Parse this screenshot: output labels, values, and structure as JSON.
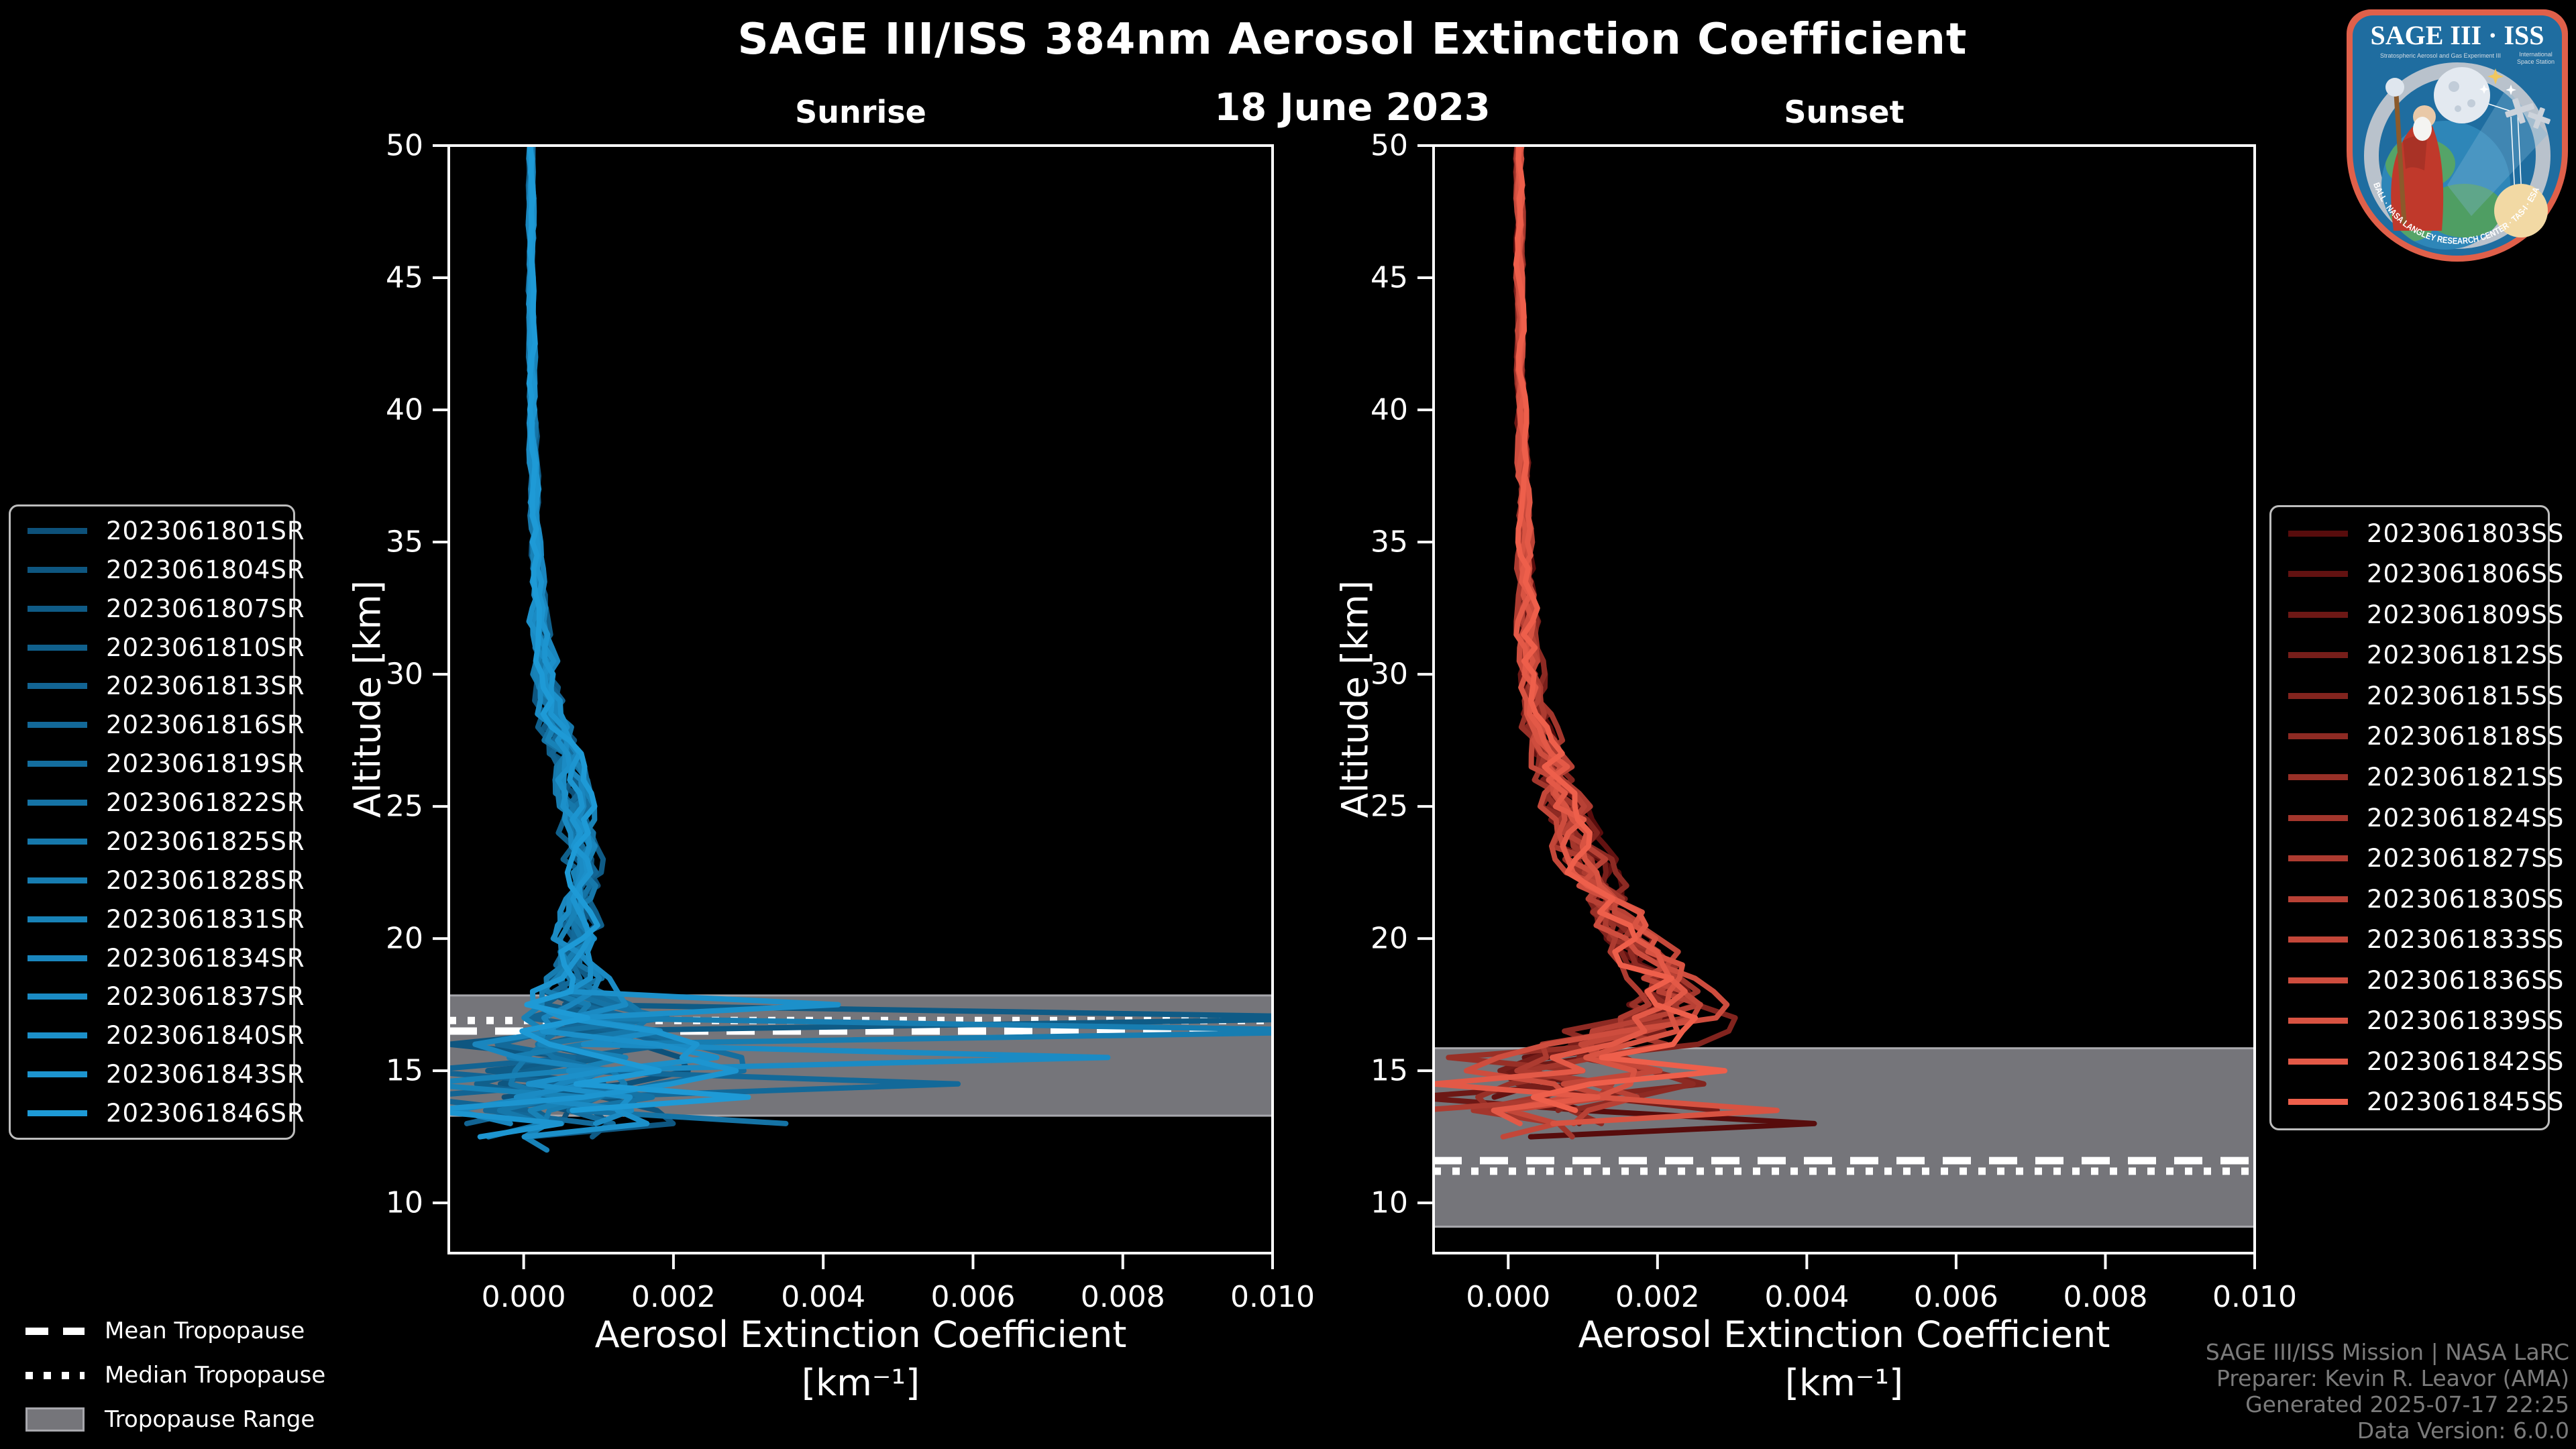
{
  "header": {
    "title": "SAGE III/ISS 384nm Aerosol Extinction Coefficient",
    "date": "18 June 2023"
  },
  "chart_data": [
    {
      "type": "line",
      "title": "Sunrise",
      "xlabel": "Aerosol Extinction Coefficient",
      "xlabel_units": "[km⁻¹]",
      "ylabel": "Altitude [km]",
      "xlim": [
        -0.001,
        0.01
      ],
      "ylim": [
        8.1,
        50
      ],
      "x_ticks": [
        "0.000",
        "0.002",
        "0.004",
        "0.006",
        "0.008",
        "0.010"
      ],
      "x_tick_values": [
        0.0,
        0.002,
        0.004,
        0.006,
        0.008,
        0.01
      ],
      "y_ticks": [
        50,
        45,
        40,
        35,
        30,
        25,
        20,
        15,
        10
      ],
      "grid": false,
      "tropopause": {
        "mean_km": 16.5,
        "median_km": 16.9,
        "range_km": [
          13.3,
          17.85
        ]
      },
      "profile": {
        "alt_km": [
          50,
          45,
          40,
          35,
          32,
          30,
          28,
          26,
          24,
          22,
          20,
          19,
          18,
          17,
          16,
          15,
          14,
          13,
          12.5,
          12
        ],
        "mean_ext": [
          0.0001,
          0.0001,
          0.00012,
          0.00015,
          0.0002,
          0.0003,
          0.00045,
          0.0006,
          0.00075,
          0.0008,
          0.0007,
          0.00065,
          0.0006,
          0.0007,
          0.0008,
          0.0006,
          0.0008,
          0.0005,
          0.0003,
          0.0002
        ],
        "spread_ext": [
          3e-05,
          3e-05,
          4e-05,
          6e-05,
          0.0001,
          0.00015,
          0.0002,
          0.0002,
          0.00022,
          0.00022,
          0.00025,
          0.0003,
          0.0005,
          0.001,
          0.0016,
          0.0018,
          0.0018,
          0.0014,
          0.001,
          0.0008
        ]
      },
      "spikes": [
        {
          "line": 2,
          "alt_km": 16.9,
          "ext": 0.0115
        },
        {
          "line": 9,
          "alt_km": 16.35,
          "ext": 0.0115
        },
        {
          "line": 12,
          "alt_km": 15.65,
          "ext": 0.0078
        },
        {
          "line": 13,
          "alt_km": 17.55,
          "ext": 0.0042
        },
        {
          "line": 5,
          "alt_km": 14.55,
          "ext": 0.0058
        },
        {
          "line": 7,
          "alt_km": 13.1,
          "ext": 0.0035
        },
        {
          "line": 15,
          "alt_km": 14.0,
          "ext": 0.003
        },
        {
          "line": 4,
          "alt_km": 15.1,
          "ext": -0.0014
        },
        {
          "line": 10,
          "alt_km": 14.25,
          "ext": -0.0014
        },
        {
          "line": 14,
          "alt_km": 13.55,
          "ext": -0.0013
        },
        {
          "line": 1,
          "alt_km": 16.05,
          "ext": -0.001
        }
      ],
      "line_top_km": 50,
      "line_end_km": [
        11.7,
        13.2
      ],
      "series": [
        {
          "name": "2023061801SR",
          "color": "#0d517a"
        },
        {
          "name": "2023061804SR",
          "color": "#0e5680"
        },
        {
          "name": "2023061807SR",
          "color": "#0f5b86"
        },
        {
          "name": "2023061810SR",
          "color": "#10608c"
        },
        {
          "name": "2023061813SR",
          "color": "#126493"
        },
        {
          "name": "2023061816SR",
          "color": "#136999"
        },
        {
          "name": "2023061819SR",
          "color": "#146e9f"
        },
        {
          "name": "2023061822SR",
          "color": "#1573a5"
        },
        {
          "name": "2023061825SR",
          "color": "#1678ab"
        },
        {
          "name": "2023061828SR",
          "color": "#177db1"
        },
        {
          "name": "2023061831SR",
          "color": "#1882b7"
        },
        {
          "name": "2023061834SR",
          "color": "#1a86be"
        },
        {
          "name": "2023061837SR",
          "color": "#1b8bc4"
        },
        {
          "name": "2023061840SR",
          "color": "#1c90ca"
        },
        {
          "name": "2023061843SR",
          "color": "#1d95d0"
        },
        {
          "name": "2023061846SR",
          "color": "#1e9ad6"
        }
      ]
    },
    {
      "type": "line",
      "title": "Sunset",
      "xlabel": "Aerosol Extinction Coefficient",
      "xlabel_units": "[km⁻¹]",
      "ylabel": "Altitude [km]",
      "xlim": [
        -0.001,
        0.01
      ],
      "ylim": [
        8.1,
        50
      ],
      "x_ticks": [
        "0.000",
        "0.002",
        "0.004",
        "0.006",
        "0.008",
        "0.010"
      ],
      "x_tick_values": [
        0.0,
        0.002,
        0.004,
        0.006,
        0.008,
        0.01
      ],
      "y_ticks": [
        50,
        45,
        40,
        35,
        30,
        25,
        20,
        15,
        10
      ],
      "grid": false,
      "tropopause": {
        "mean_km": 11.6,
        "median_km": 11.2,
        "range_km": [
          9.1,
          15.85
        ]
      },
      "profile": {
        "alt_km": [
          50,
          45,
          40,
          35,
          30,
          28,
          26,
          24,
          22,
          20,
          19,
          18,
          17,
          16,
          15,
          14,
          13.5,
          13,
          12.5
        ],
        "mean_ext": [
          0.00015,
          0.00015,
          0.00018,
          0.00022,
          0.0003,
          0.0004,
          0.0006,
          0.0009,
          0.0012,
          0.0016,
          0.00185,
          0.0021,
          0.0022,
          0.0015,
          0.001,
          0.0012,
          0.001,
          0.0006,
          0.0003
        ],
        "spread_ext": [
          4e-05,
          4e-05,
          5e-05,
          8e-05,
          0.00015,
          0.0002,
          0.00025,
          0.0003,
          0.00035,
          0.0004,
          0.00045,
          0.0005,
          0.0007,
          0.001,
          0.0012,
          0.0013,
          0.0012,
          0.001,
          0.0008
        ]
      },
      "spikes": [
        {
          "line": 0,
          "alt_km": 12.85,
          "ext": 0.0041
        },
        {
          "line": 12,
          "alt_km": 13.65,
          "ext": 0.0036
        },
        {
          "line": 3,
          "alt_km": 13.3,
          "ext": 0.0028
        },
        {
          "line": 14,
          "alt_km": 14.9,
          "ext": 0.0029
        },
        {
          "line": 2,
          "alt_km": 13.9,
          "ext": -0.0013
        },
        {
          "line": 8,
          "alt_km": 12.6,
          "ext": -0.0012
        },
        {
          "line": 13,
          "alt_km": 14.3,
          "ext": -0.001
        },
        {
          "line": 6,
          "alt_km": 15.3,
          "ext": -0.0008
        }
      ],
      "line_top_km": 50,
      "line_end_km": [
        12.3,
        13.6
      ],
      "series": [
        {
          "name": "2023061803SS",
          "color": "#570c0c"
        },
        {
          "name": "2023061806SS",
          "color": "#621211"
        },
        {
          "name": "2023061809SS",
          "color": "#6d1815"
        },
        {
          "name": "2023061812SS",
          "color": "#771e1a"
        },
        {
          "name": "2023061815SS",
          "color": "#82241e"
        },
        {
          "name": "2023061818SS",
          "color": "#8d2a23"
        },
        {
          "name": "2023061821SS",
          "color": "#983027"
        },
        {
          "name": "2023061824SS",
          "color": "#a3362c"
        },
        {
          "name": "2023061827SS",
          "color": "#ad3b30"
        },
        {
          "name": "2023061830SS",
          "color": "#b84135"
        },
        {
          "name": "2023061833SS",
          "color": "#c34739"
        },
        {
          "name": "2023061836SS",
          "color": "#ce4d3e"
        },
        {
          "name": "2023061839SS",
          "color": "#d85342"
        },
        {
          "name": "2023061842SS",
          "color": "#e35947"
        },
        {
          "name": "2023061845SS",
          "color": "#ee5f4b"
        }
      ]
    }
  ],
  "tropopause_legend": {
    "items": [
      {
        "label": "Mean Tropopause",
        "style": "dashed"
      },
      {
        "label": "Median Tropopause",
        "style": "dotted"
      },
      {
        "label": "Tropopause Range",
        "style": "range"
      }
    ]
  },
  "attribution": {
    "lines": [
      "SAGE III/ISS Mission | NASA LaRC",
      "Preparer: Kevin R. Leavor (AMA)",
      "Generated 2025-07-17 22:25",
      "Data Version: 6.0.0"
    ]
  },
  "logo": {
    "title": "SAGE III · ISS",
    "acronym": "Stratospheric Aerosol and Gas Experiment III",
    "station_line1": "International",
    "station_line2": "Space Station",
    "ring_text": "BALL · NASA LANGLEY RESEARCH CENTER · TAS-I · ESA"
  },
  "colors": {
    "background": "#000000",
    "frame": "#ffffff",
    "tropopause_band": "#75757a",
    "tropopause_band_edge": "#a8a8ad",
    "tropopause_line": "#ffffff",
    "attribution_text": "#7b7b7b",
    "legend_border": "#bdbdbd",
    "logo_border": "#e0604a",
    "logo_field": "#1f6da0"
  }
}
